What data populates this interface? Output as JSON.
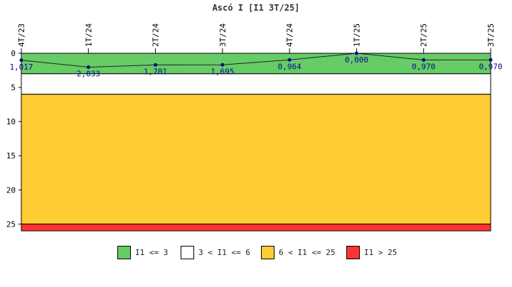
{
  "chart_data": {
    "type": "line",
    "title": "Ascó I [I1 3T/25]",
    "categories": [
      "4T/23",
      "1T/24",
      "2T/24",
      "3T/24",
      "4T/24",
      "1T/25",
      "2T/25",
      "3T/25"
    ],
    "series": [
      {
        "name": "I1",
        "values": [
          1.017,
          2.033,
          1.701,
          1.695,
          0.964,
          0.0,
          0.97,
          0.97
        ],
        "value_labels": [
          "1,017",
          "2,033",
          "1,701",
          "1,695",
          "0,964",
          "0,000",
          "0,970",
          "0,970"
        ],
        "color": "#0a0a8c"
      }
    ],
    "ylim": [
      0,
      26
    ],
    "yticks": [
      0,
      5,
      10,
      15,
      20,
      25
    ],
    "y_inverted": true,
    "bands": [
      {
        "from": 0,
        "to": 3,
        "color": "#66cc66",
        "label": "I1 <= 3"
      },
      {
        "from": 3,
        "to": 6,
        "color": "#ffffff",
        "label": "3 < I1 <= 6"
      },
      {
        "from": 6,
        "to": 25,
        "color": "#ffcc33",
        "label": "6 < I1 <= 25"
      },
      {
        "from": 25,
        "to": 26,
        "color": "#ff3333",
        "label": "I1 > 25"
      }
    ],
    "legend_position": "bottom"
  }
}
